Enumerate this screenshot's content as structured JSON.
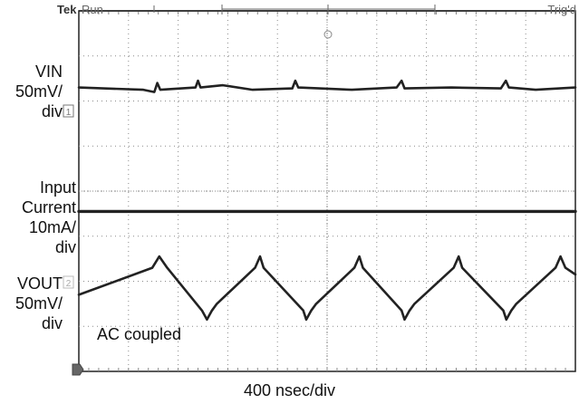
{
  "header": {
    "brand": "Tek",
    "state": "Run",
    "trigger_status": "Trig'd"
  },
  "channels": {
    "vin": {
      "lines": [
        "VIN",
        "50mV/",
        "div"
      ],
      "marker": "1"
    },
    "iin": {
      "lines": [
        "Input",
        "Current",
        "10mA/",
        "div"
      ]
    },
    "vout": {
      "lines": [
        "VOUT",
        "50mV/",
        "div"
      ],
      "marker": "2",
      "coupling": "AC coupled"
    }
  },
  "timebase": "400 nsec/div",
  "colors": {
    "trace": "#222222",
    "grid": "#8a8a8a",
    "background": "#ffffff"
  },
  "chart_data": {
    "type": "line",
    "title": "",
    "xlabel": "400 nsec/div",
    "grid": true,
    "divisions": {
      "x": 10,
      "y": 8
    },
    "xlim": [
      0,
      10
    ],
    "ylim": [
      0,
      8
    ],
    "series": [
      {
        "x": [
          0,
          1.3,
          1.52,
          1.58,
          1.64,
          2.35,
          2.4,
          2.45,
          2.9,
          3.5,
          4.3,
          4.36,
          4.42,
          5.5,
          6.4,
          6.5,
          6.56,
          7.5,
          8.5,
          8.6,
          8.66,
          9.2,
          10
        ],
        "y": [
          6.3,
          6.25,
          6.2,
          6.4,
          6.25,
          6.3,
          6.45,
          6.3,
          6.35,
          6.25,
          6.28,
          6.45,
          6.3,
          6.25,
          6.3,
          6.45,
          6.28,
          6.3,
          6.28,
          6.45,
          6.3,
          6.25,
          6.3
        ]
      },
      {
        "x": [
          0,
          10
        ],
        "y": [
          3.55,
          3.55
        ]
      },
      {
        "x": [
          0,
          1.48,
          1.62,
          1.78,
          2.48,
          2.58,
          2.68,
          2.78,
          3.55,
          3.65,
          3.72,
          4.52,
          4.58,
          4.68,
          4.78,
          5.55,
          5.65,
          5.72,
          6.5,
          6.56,
          6.66,
          6.76,
          7.55,
          7.65,
          7.72,
          8.55,
          8.61,
          8.71,
          8.81,
          9.6,
          9.7,
          9.8,
          10
        ],
        "y": [
          1.7,
          2.3,
          2.55,
          2.3,
          1.35,
          1.15,
          1.35,
          1.5,
          2.3,
          2.55,
          2.3,
          1.35,
          1.15,
          1.35,
          1.5,
          2.3,
          2.55,
          2.3,
          1.35,
          1.15,
          1.35,
          1.5,
          2.3,
          2.55,
          2.3,
          1.35,
          1.15,
          1.35,
          1.5,
          2.3,
          2.55,
          2.3,
          2.15
        ]
      }
    ]
  }
}
